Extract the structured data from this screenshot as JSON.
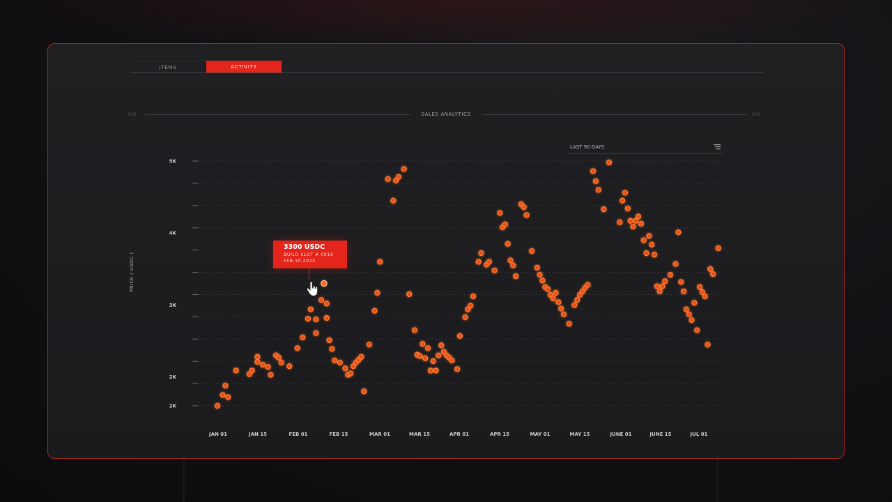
{
  "tabs": [
    {
      "label": "ITEMS",
      "active": false
    },
    {
      "label": "ACTIVITY",
      "active": true
    }
  ],
  "section": {
    "number_left": "001",
    "title": "SALES ANALYTICS",
    "number_right": "001"
  },
  "range_select": {
    "label": "LAST 90 DAYS",
    "icon": "dropdown-icon"
  },
  "tooltip": {
    "price": "3300 USDC",
    "item": "BUILD SLOT # 0019",
    "date": "FEB 10 2025"
  },
  "colors": {
    "accent": "#e3251b",
    "point": "#ff5a14",
    "panel_border": "#a8271e"
  },
  "chart_data": {
    "type": "scatter",
    "title": "SALES ANALYTICS",
    "xlabel": "",
    "ylabel": "PRICE ( USDC )",
    "x_type": "date",
    "x_ticks": [
      "JAN 01",
      "JAN 15",
      "FEB 01",
      "FEB 15",
      "MAR 01",
      "MAR 15",
      "APR 01",
      "APR 15",
      "MAY 01",
      "MAY 15",
      "JUNE 01",
      "JUNE 15",
      "JUL 01"
    ],
    "y_tick_labels": [
      "5K",
      "4K",
      "3K",
      "2K",
      "2K"
    ],
    "y_ticks": [
      5000,
      4000,
      3000,
      2000,
      1600
    ],
    "ylim": [
      1600,
      5000
    ],
    "grid": true,
    "highlighted_point": {
      "x": "2025-02-10",
      "y": 3300
    },
    "points": [
      {
        "x": "2025-01-01",
        "y": 1600
      },
      {
        "x": "2025-01-03",
        "y": 1750
      },
      {
        "x": "2025-01-04",
        "y": 1880
      },
      {
        "x": "2025-01-05",
        "y": 1720
      },
      {
        "x": "2025-01-08",
        "y": 2090
      },
      {
        "x": "2025-01-13",
        "y": 2040
      },
      {
        "x": "2025-01-14",
        "y": 2090
      },
      {
        "x": "2025-01-16",
        "y": 2210
      },
      {
        "x": "2025-01-16",
        "y": 2280
      },
      {
        "x": "2025-01-18",
        "y": 2170
      },
      {
        "x": "2025-01-20",
        "y": 2140
      },
      {
        "x": "2025-01-21",
        "y": 2030
      },
      {
        "x": "2025-01-23",
        "y": 2300
      },
      {
        "x": "2025-01-24",
        "y": 2270
      },
      {
        "x": "2025-01-25",
        "y": 2200
      },
      {
        "x": "2025-01-28",
        "y": 2150
      },
      {
        "x": "2025-01-31",
        "y": 2400
      },
      {
        "x": "2025-02-02",
        "y": 2550
      },
      {
        "x": "2025-02-04",
        "y": 2810
      },
      {
        "x": "2025-02-05",
        "y": 2940
      },
      {
        "x": "2025-02-07",
        "y": 2800
      },
      {
        "x": "2025-02-07",
        "y": 2610
      },
      {
        "x": "2025-02-10",
        "y": 3300
      },
      {
        "x": "2025-02-09",
        "y": 3070
      },
      {
        "x": "2025-02-11",
        "y": 3020
      },
      {
        "x": "2025-02-11",
        "y": 2820
      },
      {
        "x": "2025-02-12",
        "y": 2510
      },
      {
        "x": "2025-02-13",
        "y": 2390
      },
      {
        "x": "2025-02-14",
        "y": 2230
      },
      {
        "x": "2025-02-16",
        "y": 2200
      },
      {
        "x": "2025-02-18",
        "y": 2120
      },
      {
        "x": "2025-02-19",
        "y": 2030
      },
      {
        "x": "2025-02-20",
        "y": 2050
      },
      {
        "x": "2025-02-21",
        "y": 2150
      },
      {
        "x": "2025-02-22",
        "y": 2200
      },
      {
        "x": "2025-02-23",
        "y": 2240
      },
      {
        "x": "2025-02-24",
        "y": 2280
      },
      {
        "x": "2025-02-25",
        "y": 1800
      },
      {
        "x": "2025-02-27",
        "y": 2450
      },
      {
        "x": "2025-03-01",
        "y": 2920
      },
      {
        "x": "2025-03-02",
        "y": 3170
      },
      {
        "x": "2025-03-03",
        "y": 3600
      },
      {
        "x": "2025-03-06",
        "y": 4750
      },
      {
        "x": "2025-03-08",
        "y": 4450
      },
      {
        "x": "2025-03-09",
        "y": 4730
      },
      {
        "x": "2025-03-10",
        "y": 4780
      },
      {
        "x": "2025-03-12",
        "y": 4890
      },
      {
        "x": "2025-03-14",
        "y": 3150
      },
      {
        "x": "2025-03-16",
        "y": 2650
      },
      {
        "x": "2025-03-17",
        "y": 2310
      },
      {
        "x": "2025-03-18",
        "y": 2290
      },
      {
        "x": "2025-03-19",
        "y": 2460
      },
      {
        "x": "2025-03-20",
        "y": 2260
      },
      {
        "x": "2025-03-21",
        "y": 2400
      },
      {
        "x": "2025-03-22",
        "y": 2090
      },
      {
        "x": "2025-03-23",
        "y": 2220
      },
      {
        "x": "2025-03-24",
        "y": 2090
      },
      {
        "x": "2025-03-25",
        "y": 2300
      },
      {
        "x": "2025-03-26",
        "y": 2440
      },
      {
        "x": "2025-03-27",
        "y": 2350
      },
      {
        "x": "2025-03-28",
        "y": 2300
      },
      {
        "x": "2025-03-29",
        "y": 2270
      },
      {
        "x": "2025-03-30",
        "y": 2230
      },
      {
        "x": "2025-04-01",
        "y": 2110
      },
      {
        "x": "2025-04-02",
        "y": 2570
      },
      {
        "x": "2025-04-04",
        "y": 2830
      },
      {
        "x": "2025-04-05",
        "y": 2940
      },
      {
        "x": "2025-04-06",
        "y": 2990
      },
      {
        "x": "2025-04-07",
        "y": 3120
      },
      {
        "x": "2025-04-09",
        "y": 3600
      },
      {
        "x": "2025-04-10",
        "y": 3720
      },
      {
        "x": "2025-04-12",
        "y": 3560
      },
      {
        "x": "2025-04-13",
        "y": 3600
      },
      {
        "x": "2025-04-15",
        "y": 3480
      },
      {
        "x": "2025-04-17",
        "y": 4280
      },
      {
        "x": "2025-04-18",
        "y": 4080
      },
      {
        "x": "2025-04-19",
        "y": 4120
      },
      {
        "x": "2025-04-20",
        "y": 3850
      },
      {
        "x": "2025-04-21",
        "y": 3620
      },
      {
        "x": "2025-04-22",
        "y": 3550
      },
      {
        "x": "2025-04-23",
        "y": 3400
      },
      {
        "x": "2025-04-25",
        "y": 4400
      },
      {
        "x": "2025-04-26",
        "y": 4360
      },
      {
        "x": "2025-04-27",
        "y": 4250
      },
      {
        "x": "2025-04-29",
        "y": 3750
      },
      {
        "x": "2025-05-01",
        "y": 3520
      },
      {
        "x": "2025-05-02",
        "y": 3420
      },
      {
        "x": "2025-05-03",
        "y": 3340
      },
      {
        "x": "2025-05-04",
        "y": 3250
      },
      {
        "x": "2025-05-05",
        "y": 3220
      },
      {
        "x": "2025-05-06",
        "y": 3140
      },
      {
        "x": "2025-05-07",
        "y": 3090
      },
      {
        "x": "2025-05-08",
        "y": 3170
      },
      {
        "x": "2025-05-09",
        "y": 3040
      },
      {
        "x": "2025-05-10",
        "y": 2950
      },
      {
        "x": "2025-05-11",
        "y": 2870
      },
      {
        "x": "2025-05-13",
        "y": 2740
      },
      {
        "x": "2025-05-15",
        "y": 3000
      },
      {
        "x": "2025-05-16",
        "y": 3070
      },
      {
        "x": "2025-05-17",
        "y": 3140
      },
      {
        "x": "2025-05-18",
        "y": 3190
      },
      {
        "x": "2025-05-19",
        "y": 3240
      },
      {
        "x": "2025-05-20",
        "y": 3280
      },
      {
        "x": "2025-05-22",
        "y": 4860
      },
      {
        "x": "2025-05-23",
        "y": 4720
      },
      {
        "x": "2025-05-24",
        "y": 4600
      },
      {
        "x": "2025-05-26",
        "y": 4330
      },
      {
        "x": "2025-05-28",
        "y": 4980
      },
      {
        "x": "2025-06-01",
        "y": 4150
      },
      {
        "x": "2025-06-02",
        "y": 4450
      },
      {
        "x": "2025-06-03",
        "y": 4560
      },
      {
        "x": "2025-06-04",
        "y": 4340
      },
      {
        "x": "2025-06-05",
        "y": 4170
      },
      {
        "x": "2025-06-06",
        "y": 4090
      },
      {
        "x": "2025-06-07",
        "y": 4170
      },
      {
        "x": "2025-06-08",
        "y": 4230
      },
      {
        "x": "2025-06-09",
        "y": 4130
      },
      {
        "x": "2025-06-10",
        "y": 3900
      },
      {
        "x": "2025-06-11",
        "y": 3720
      },
      {
        "x": "2025-06-12",
        "y": 3960
      },
      {
        "x": "2025-06-13",
        "y": 3840
      },
      {
        "x": "2025-06-14",
        "y": 3700
      },
      {
        "x": "2025-06-15",
        "y": 3260
      },
      {
        "x": "2025-06-16",
        "y": 3190
      },
      {
        "x": "2025-06-17",
        "y": 3260
      },
      {
        "x": "2025-06-18",
        "y": 3330
      },
      {
        "x": "2025-06-20",
        "y": 3420
      },
      {
        "x": "2025-06-22",
        "y": 3570
      },
      {
        "x": "2025-06-23",
        "y": 4010
      },
      {
        "x": "2025-06-24",
        "y": 3320
      },
      {
        "x": "2025-06-25",
        "y": 3190
      },
      {
        "x": "2025-06-26",
        "y": 2940
      },
      {
        "x": "2025-06-27",
        "y": 2870
      },
      {
        "x": "2025-06-28",
        "y": 2790
      },
      {
        "x": "2025-06-29",
        "y": 3030
      },
      {
        "x": "2025-06-30",
        "y": 2650
      },
      {
        "x": "2025-07-01",
        "y": 3250
      },
      {
        "x": "2025-07-02",
        "y": 3180
      },
      {
        "x": "2025-07-03",
        "y": 3120
      },
      {
        "x": "2025-07-04",
        "y": 2450
      },
      {
        "x": "2025-07-05",
        "y": 3500
      },
      {
        "x": "2025-07-06",
        "y": 3430
      },
      {
        "x": "2025-07-08",
        "y": 3790
      }
    ]
  }
}
